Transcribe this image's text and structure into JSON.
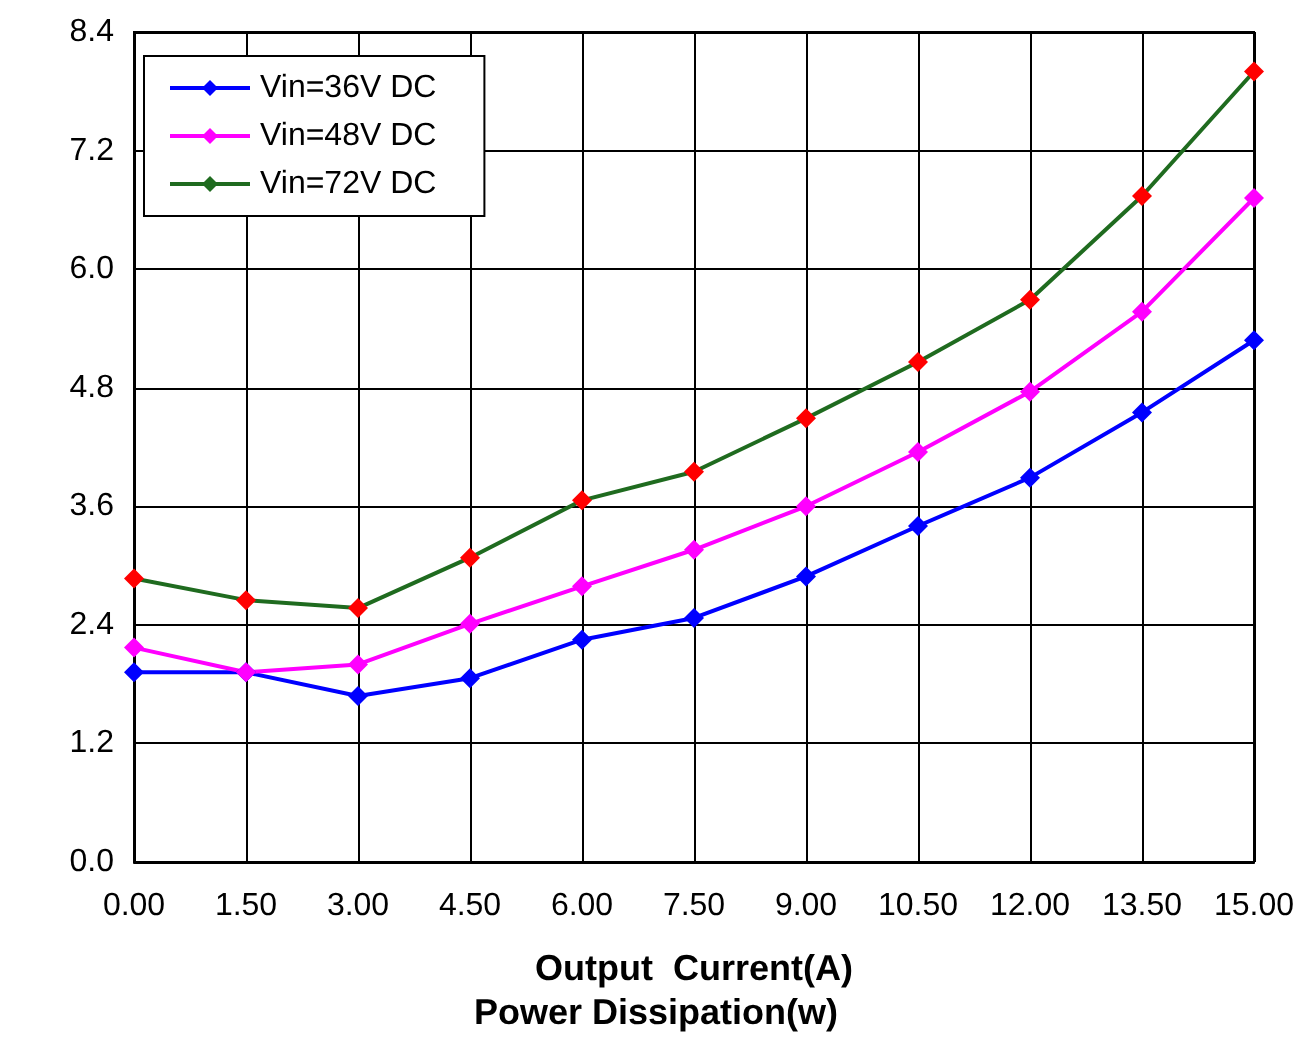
{
  "chart_data": {
    "type": "line",
    "xlabel": "Output  Current(A)",
    "annotations": [
      "Power Dissipation(w)"
    ],
    "x": [
      0,
      1.5,
      3,
      4.5,
      6,
      7.5,
      9,
      10.5,
      12,
      13.5,
      15
    ],
    "xlim": [
      0,
      15
    ],
    "xticks": [
      {
        "value": 0,
        "label": "0.00"
      },
      {
        "value": 1.5,
        "label": "1.50"
      },
      {
        "value": 3,
        "label": "3.00"
      },
      {
        "value": 4.5,
        "label": "4.50"
      },
      {
        "value": 6,
        "label": "6.00"
      },
      {
        "value": 7.5,
        "label": "7.50"
      },
      {
        "value": 9,
        "label": "9.00"
      },
      {
        "value": 10.5,
        "label": "10.50"
      },
      {
        "value": 12,
        "label": "12.00"
      },
      {
        "value": 13.5,
        "label": "13.50"
      },
      {
        "value": 15,
        "label": "15.00"
      }
    ],
    "ylim": [
      0,
      8.4
    ],
    "yticks": [
      {
        "value": 0,
        "label": "0.0"
      },
      {
        "value": 1.2,
        "label": "1.2"
      },
      {
        "value": 2.4,
        "label": "2.4"
      },
      {
        "value": 3.6,
        "label": "3.6"
      },
      {
        "value": 4.8,
        "label": "4.8"
      },
      {
        "value": 6,
        "label": "6.0"
      },
      {
        "value": 7.2,
        "label": "7.2"
      },
      {
        "value": 8.4,
        "label": "8.4"
      }
    ],
    "grid": true,
    "legend": "top left",
    "marker": "diamond",
    "line_style": "solid",
    "series": [
      {
        "name": "Vin=36V DC",
        "color": "#0000ff",
        "values": [
          1.92,
          1.92,
          1.68,
          1.86,
          2.25,
          2.47,
          2.89,
          3.4,
          3.89,
          4.55,
          5.28
        ]
      },
      {
        "name": "Vin=48V DC",
        "color": "#ff00ff",
        "values": [
          2.17,
          1.92,
          2.0,
          2.41,
          2.79,
          3.16,
          3.6,
          4.15,
          4.76,
          5.57,
          6.72
        ]
      },
      {
        "name": "Vin=72V DC",
        "color": "#1f6b1f",
        "colors": [
          "#ff0000",
          "#ff0000",
          "#ff0000",
          "#ff0000",
          "#ff0000",
          "#ff0000",
          "#ff0000",
          "#ff0000",
          "#ff0000",
          "#ff0000",
          "#ff0000"
        ],
        "values": [
          2.87,
          2.65,
          2.57,
          3.08,
          3.66,
          3.95,
          4.49,
          5.06,
          5.69,
          6.74,
          8.0
        ]
      }
    ]
  }
}
